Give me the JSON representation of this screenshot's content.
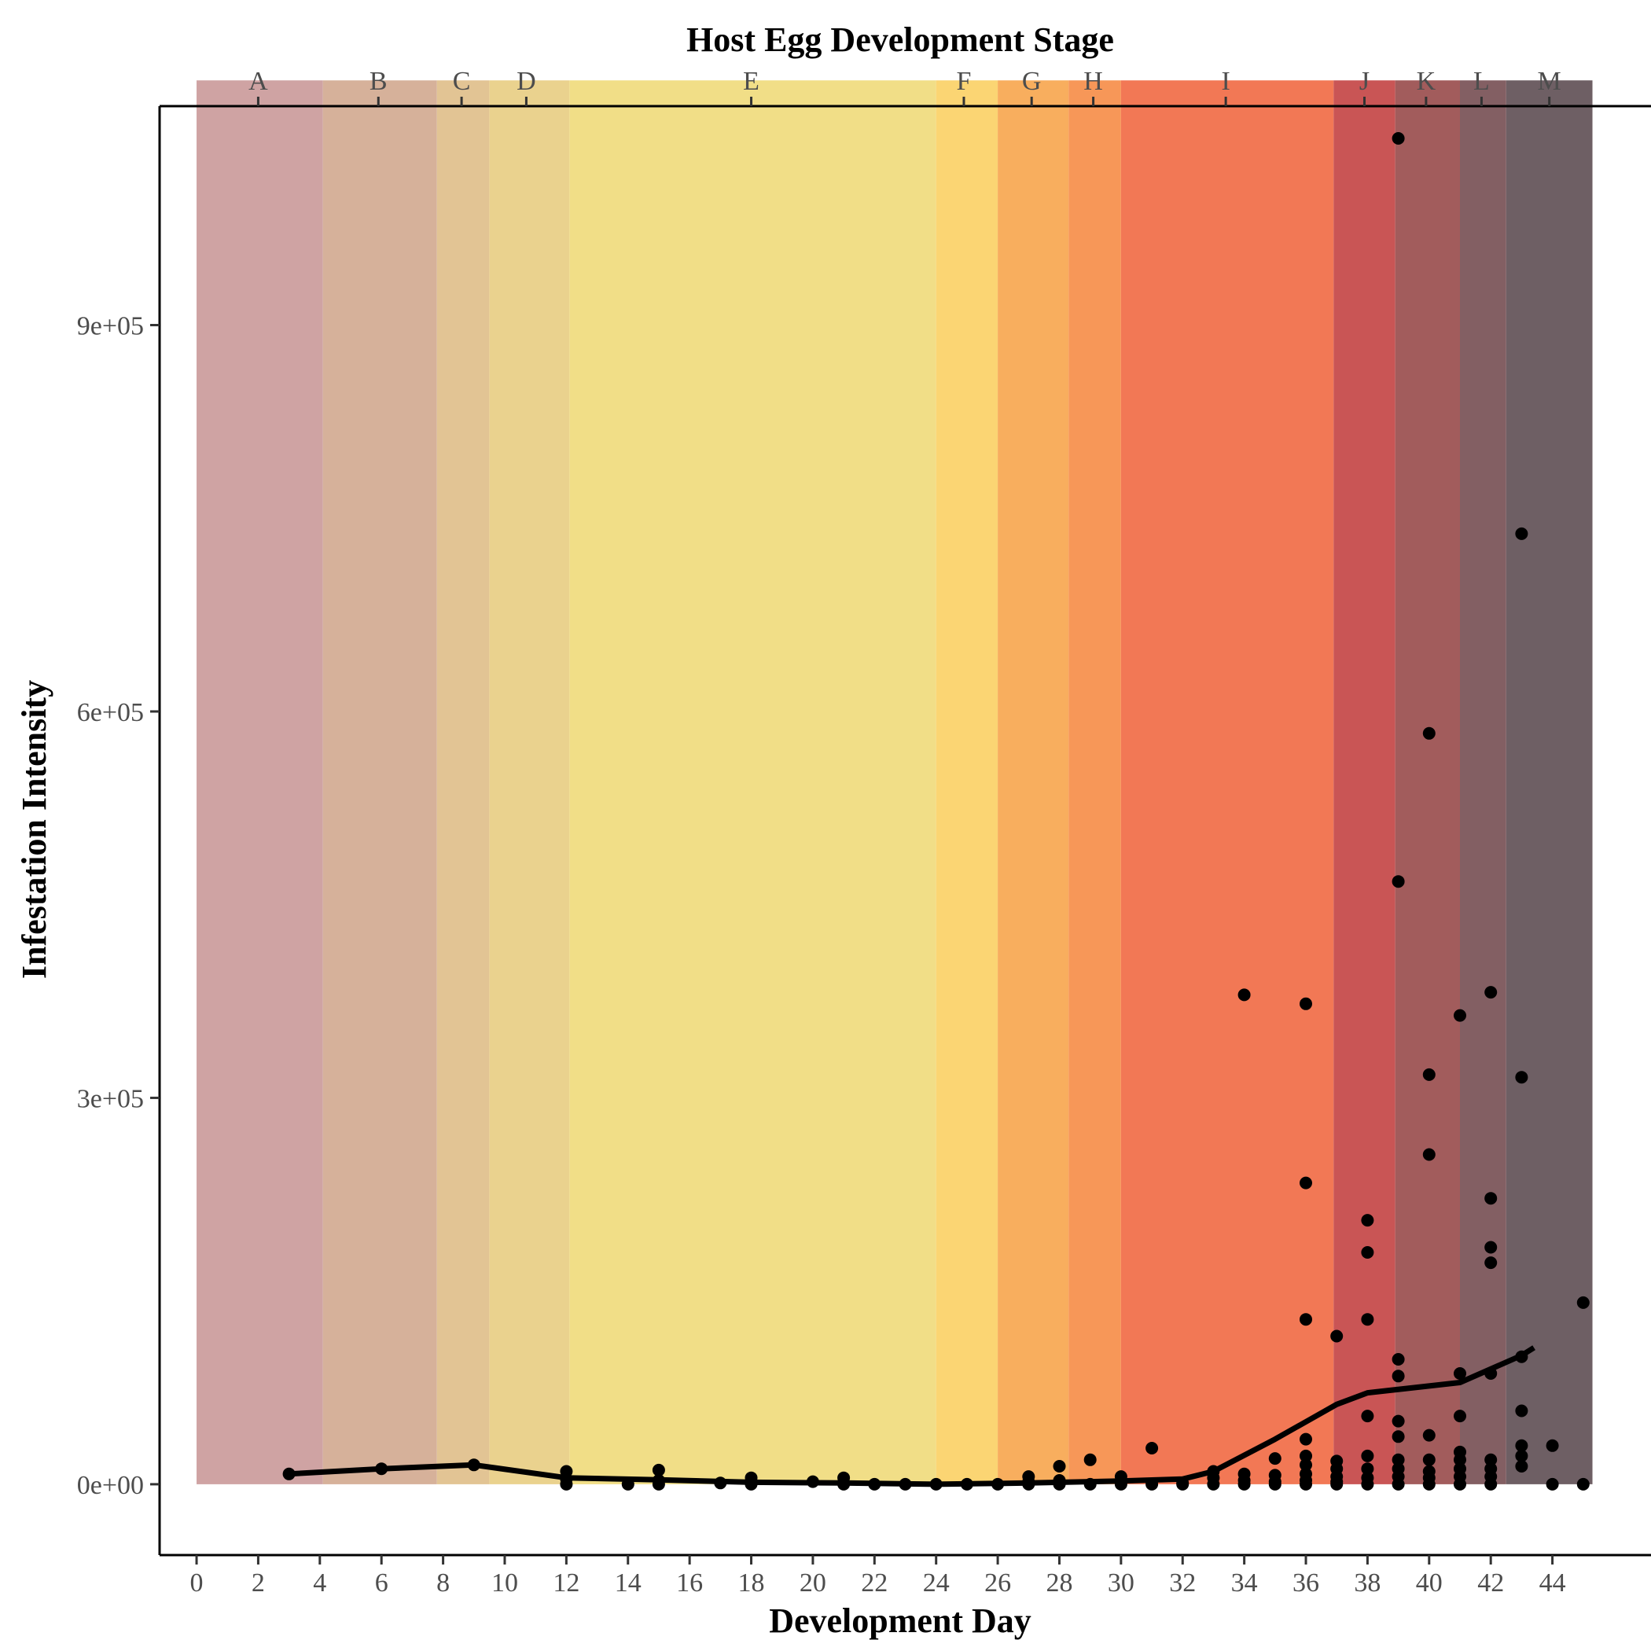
{
  "chart_data": {
    "type": "scatter",
    "title": "",
    "xlabel": "Development Day",
    "ylabel": "Infestation Intensity",
    "top_axis_title": "Host Egg Development Stage",
    "xlim": [
      -1.2,
      47.2
    ],
    "ylim": [
      -55000,
      1070000
    ],
    "x_ticks": [
      0,
      2,
      4,
      6,
      8,
      10,
      12,
      14,
      16,
      18,
      20,
      22,
      24,
      26,
      28,
      30,
      32,
      34,
      36,
      38,
      40,
      42,
      44
    ],
    "x_tick_labels": [
      "0",
      "2",
      "4",
      "6",
      "8",
      "10",
      "12",
      "14",
      "16",
      "18",
      "20",
      "22",
      "24",
      "26",
      "28",
      "30",
      "32",
      "34",
      "36",
      "38",
      "40",
      "42",
      "44"
    ],
    "y_ticks": [
      0,
      300000,
      600000,
      900000
    ],
    "y_tick_labels": [
      "0e+00",
      "3e+05",
      "6e+05",
      "9e+05"
    ],
    "grid": false,
    "legend": "none",
    "stage_bands": [
      {
        "label": "A",
        "label_x": 2,
        "x_start": 0,
        "x_end": 4.1,
        "color": "#cfa3a3"
      },
      {
        "label": "B",
        "label_x": 5.9,
        "x_start": 4.1,
        "x_end": 7.8,
        "color": "#d6b19a"
      },
      {
        "label": "C",
        "label_x": 8.6,
        "x_start": 7.8,
        "x_end": 9.5,
        "color": "#e2c494"
      },
      {
        "label": "D",
        "label_x": 10.7,
        "x_start": 9.5,
        "x_end": 12.1,
        "color": "#ead28e"
      },
      {
        "label": "E",
        "label_x": 18,
        "x_start": 12.1,
        "x_end": 24,
        "color": "#f1de87"
      },
      {
        "label": "F",
        "label_x": 24.9,
        "x_start": 24,
        "x_end": 26,
        "color": "#fbd573"
      },
      {
        "label": "G",
        "label_x": 27.1,
        "x_start": 26,
        "x_end": 28.3,
        "color": "#f8ae5e"
      },
      {
        "label": "H",
        "label_x": 29.1,
        "x_start": 28.3,
        "x_end": 30,
        "color": "#f79758"
      },
      {
        "label": "I",
        "label_x": 33.4,
        "x_start": 30,
        "x_end": 36.9,
        "color": "#f27855"
      },
      {
        "label": "J",
        "label_x": 37.9,
        "x_start": 36.9,
        "x_end": 38.9,
        "color": "#c95555"
      },
      {
        "label": "K",
        "label_x": 39.9,
        "x_start": 38.9,
        "x_end": 41,
        "color": "#a25c5c"
      },
      {
        "label": "L",
        "label_x": 41.7,
        "x_start": 41,
        "x_end": 42.5,
        "color": "#835f63"
      },
      {
        "label": "M",
        "label_x": 43.9,
        "x_start": 42.5,
        "x_end": 45.3,
        "color": "#6e5f64"
      }
    ],
    "band_y_range": [
      0,
      1090000
    ],
    "series": [
      {
        "type": "scatter",
        "color": "#000000",
        "points": [
          [
            3,
            8000
          ],
          [
            6,
            12000
          ],
          [
            9,
            15000
          ],
          [
            12,
            10000
          ],
          [
            12,
            4000
          ],
          [
            12,
            0
          ],
          [
            14,
            0
          ],
          [
            15,
            11000
          ],
          [
            15,
            3000
          ],
          [
            15,
            0
          ],
          [
            17,
            1000
          ],
          [
            18,
            5000
          ],
          [
            18,
            1000
          ],
          [
            18,
            0
          ],
          [
            20,
            2000
          ],
          [
            21,
            5000
          ],
          [
            21,
            1000
          ],
          [
            21,
            0
          ],
          [
            22,
            0
          ],
          [
            23,
            0
          ],
          [
            24,
            0
          ],
          [
            25,
            0
          ],
          [
            26,
            0
          ],
          [
            27,
            6000
          ],
          [
            27,
            2000
          ],
          [
            27,
            0
          ],
          [
            28,
            14000
          ],
          [
            28,
            3000
          ],
          [
            28,
            0
          ],
          [
            29,
            19000
          ],
          [
            29,
            0
          ],
          [
            30,
            6000
          ],
          [
            30,
            2000
          ],
          [
            30,
            0
          ],
          [
            31,
            28000
          ],
          [
            31,
            0
          ],
          [
            32,
            1000
          ],
          [
            32,
            0
          ],
          [
            33,
            10000
          ],
          [
            33,
            5000
          ],
          [
            33,
            0
          ],
          [
            34,
            380000
          ],
          [
            34,
            8000
          ],
          [
            34,
            3000
          ],
          [
            34,
            0
          ],
          [
            35,
            20000
          ],
          [
            35,
            7000
          ],
          [
            35,
            2000
          ],
          [
            35,
            0
          ],
          [
            36,
            373000
          ],
          [
            36,
            234000
          ],
          [
            36,
            128000
          ],
          [
            36,
            35000
          ],
          [
            36,
            22000
          ],
          [
            36,
            15000
          ],
          [
            36,
            8000
          ],
          [
            36,
            3000
          ],
          [
            36,
            0
          ],
          [
            37,
            115000
          ],
          [
            37,
            18000
          ],
          [
            37,
            12000
          ],
          [
            37,
            6000
          ],
          [
            37,
            2000
          ],
          [
            37,
            0
          ],
          [
            38,
            205000
          ],
          [
            38,
            180000
          ],
          [
            38,
            128000
          ],
          [
            38,
            53000
          ],
          [
            38,
            22000
          ],
          [
            38,
            12000
          ],
          [
            38,
            5000
          ],
          [
            38,
            0
          ],
          [
            39,
            1045000
          ],
          [
            39,
            468000
          ],
          [
            39,
            97000
          ],
          [
            39,
            84000
          ],
          [
            39,
            49000
          ],
          [
            39,
            37000
          ],
          [
            39,
            19000
          ],
          [
            39,
            12000
          ],
          [
            39,
            6000
          ],
          [
            39,
            0
          ],
          [
            40,
            583000
          ],
          [
            40,
            318000
          ],
          [
            40,
            256000
          ],
          [
            40,
            38000
          ],
          [
            40,
            19000
          ],
          [
            40,
            10000
          ],
          [
            40,
            5000
          ],
          [
            40,
            0
          ],
          [
            41,
            364000
          ],
          [
            41,
            86000
          ],
          [
            41,
            53000
          ],
          [
            41,
            25000
          ],
          [
            41,
            19000
          ],
          [
            41,
            12000
          ],
          [
            41,
            6000
          ],
          [
            41,
            0
          ],
          [
            42,
            382000
          ],
          [
            42,
            222000
          ],
          [
            42,
            184000
          ],
          [
            42,
            172000
          ],
          [
            42,
            86000
          ],
          [
            42,
            19000
          ],
          [
            42,
            12000
          ],
          [
            42,
            6000
          ],
          [
            42,
            0
          ],
          [
            43,
            738000
          ],
          [
            43,
            316000
          ],
          [
            43,
            99000
          ],
          [
            43,
            57000
          ],
          [
            43,
            30000
          ],
          [
            43,
            22000
          ],
          [
            43,
            14000
          ],
          [
            44,
            30000
          ],
          [
            44,
            0
          ],
          [
            45,
            141000
          ],
          [
            45,
            0
          ]
        ]
      },
      {
        "type": "line",
        "color": "#000000",
        "points": [
          [
            3,
            8000
          ],
          [
            6,
            12000
          ],
          [
            9,
            15000
          ],
          [
            12,
            5000
          ],
          [
            15,
            3500
          ],
          [
            18,
            1500
          ],
          [
            21,
            1000
          ],
          [
            24,
            0
          ],
          [
            27,
            1000
          ],
          [
            30,
            2500
          ],
          [
            32,
            4000
          ],
          [
            33,
            10000
          ],
          [
            35,
            35000
          ],
          [
            37,
            62000
          ],
          [
            38,
            71000
          ],
          [
            41,
            79000
          ],
          [
            43,
            100000
          ],
          [
            43.4,
            106000
          ]
        ]
      }
    ]
  }
}
